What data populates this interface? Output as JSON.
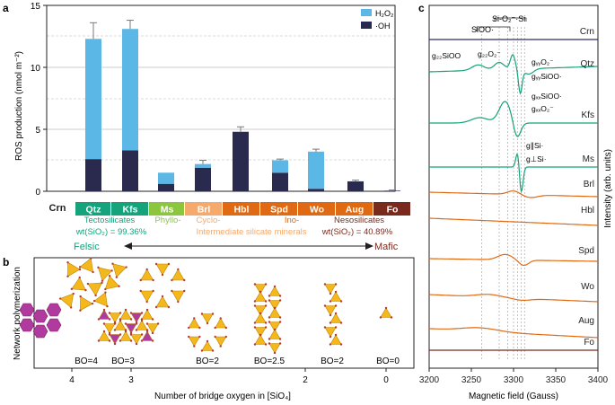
{
  "panel_labels": {
    "a": "a",
    "b": "b",
    "c": "c"
  },
  "colors": {
    "h2o2": "#5bb8e6",
    "oh": "#2a2a4e",
    "tecto": "#14a37a",
    "phyllo": "#8cc63f",
    "cyclo": "#f6a96c",
    "ino": "#e06a14",
    "neso": "#7a2a1c",
    "crn": "#2a2a6e",
    "mol_yellow": "#f5b81c",
    "mol_pink": "#b03a9e",
    "o_red": "#c0392b"
  },
  "chart_data": [
    {
      "type": "bar",
      "title": "",
      "ylabel": "ROS production (nmol m⁻²)",
      "ylim": [
        0,
        15
      ],
      "yticks": [
        "0",
        "5",
        "10",
        "15"
      ],
      "categories": [
        "Crn",
        "Qtz",
        "Kfs",
        "Ms",
        "Brl",
        "Hbl",
        "Spd",
        "Wo",
        "Aug",
        "Fo"
      ],
      "legend": [
        "H₂O₂",
        "·OH"
      ],
      "series": [
        {
          "name": "·OH",
          "values": [
            0.0,
            2.6,
            3.3,
            0.6,
            1.9,
            4.8,
            1.5,
            0.2,
            0.8,
            0.05
          ]
        },
        {
          "name": "H₂O₂",
          "values": [
            0.0,
            9.7,
            9.8,
            0.9,
            0.3,
            0.0,
            1.0,
            3.0,
            0.0,
            0.0
          ]
        }
      ],
      "error_top": [
        0.0,
        13.6,
        13.8,
        1.5,
        2.5,
        5.2,
        2.6,
        3.4,
        0.9,
        0.1
      ],
      "groups": [
        {
          "label": "Tectosilicates",
          "formula": "wt(SiO₂) = 99.36%"
        },
        {
          "label": "Phyllo-"
        },
        {
          "label": "Cyclo-"
        },
        {
          "label": "Ino-"
        },
        {
          "label": "Nesosilicates",
          "formula": "wt(SiO₂) = 40.89%"
        }
      ],
      "sub_label": "Intermediate silicate minerals",
      "axis_ends": {
        "left": "Felsic",
        "right": "Mafic"
      }
    },
    {
      "type": "line",
      "xlabel": "Magnetic field (Gauss)",
      "ylabel": "Intensity (arb. units)",
      "xlim": [
        3200,
        3400
      ],
      "xticks": [
        "3200",
        "3250",
        "3300",
        "3350",
        "3400"
      ],
      "series": [
        {
          "name": "Crn"
        },
        {
          "name": "Qtz"
        },
        {
          "name": "Kfs"
        },
        {
          "name": "Ms"
        },
        {
          "name": "Brl"
        },
        {
          "name": "Hbl"
        },
        {
          "name": "Spd"
        },
        {
          "name": "Wo"
        },
        {
          "name": "Aug"
        },
        {
          "name": "Fo"
        }
      ],
      "annotations": [
        "SiOO·",
        "Si-O₂⁻·Si",
        "g₂₂SiOO",
        "g₂₂O₂⁻",
        "gᵧᵧO₂⁻",
        "gᵧᵧSiOO·",
        "gₓₓSiOO·",
        "gₓₓO₂⁻",
        "g∥Si·",
        "g⊥Si·"
      ]
    }
  ],
  "panel_b": {
    "ylabel": "Network polymerization",
    "xlabel": "Number of bridge oxygen in [SiO₄]",
    "xticks": [
      "4",
      "3",
      "2",
      "0"
    ],
    "bo_labels": [
      "BO=4",
      "BO=3",
      "BO=2",
      "BO=2.5",
      "BO=2",
      "BO=0"
    ]
  }
}
